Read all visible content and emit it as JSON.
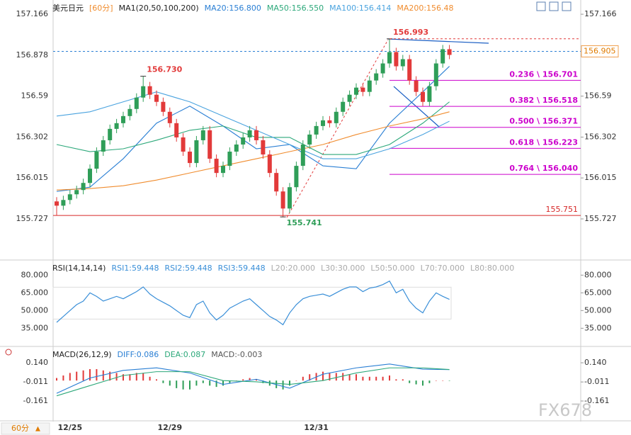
{
  "chart_data": [
    {
      "type": "candlestick",
      "title": "美元日元",
      "period": "[60分]",
      "ma_label": "MA1(20,50,100,200)",
      "up_color": "#2f9e58",
      "down_color": "#e23a3a",
      "categories": [
        null,
        null,
        "12/25",
        null,
        null,
        null,
        null,
        null,
        null,
        null,
        null,
        null,
        null,
        null,
        null,
        null,
        null,
        "12/29",
        null,
        null,
        null,
        null,
        null,
        null,
        null,
        null,
        null,
        null,
        null,
        null,
        null,
        null,
        null,
        null,
        null,
        null,
        null,
        null,
        null,
        "12/31",
        null,
        null,
        null,
        null,
        null,
        null,
        null,
        null,
        null,
        null,
        null,
        null,
        null,
        null,
        null,
        null,
        null,
        null,
        null,
        null
      ],
      "open": [
        155.85,
        155.82,
        155.86,
        155.9,
        155.93,
        155.98,
        156.08,
        156.2,
        156.28,
        156.36,
        156.4,
        156.45,
        156.5,
        156.58,
        156.66,
        156.6,
        156.55,
        156.48,
        156.4,
        156.3,
        156.2,
        156.12,
        156.28,
        156.35,
        156.15,
        156.05,
        156.1,
        156.2,
        156.25,
        156.3,
        156.35,
        156.28,
        156.18,
        156.05,
        155.92,
        155.8,
        155.95,
        156.1,
        156.25,
        156.32,
        156.38,
        156.42,
        156.4,
        156.48,
        156.55,
        156.6,
        156.65,
        156.62,
        156.7,
        156.75,
        156.82,
        156.9,
        156.8,
        156.85,
        156.7,
        156.62,
        156.55,
        156.66,
        156.82,
        156.92
      ],
      "high": [
        155.88,
        155.89,
        155.93,
        155.96,
        156.01,
        156.11,
        156.23,
        156.31,
        156.39,
        156.43,
        156.48,
        156.53,
        156.61,
        156.73,
        156.69,
        156.63,
        156.58,
        156.51,
        156.43,
        156.33,
        156.23,
        156.31,
        156.38,
        156.38,
        156.18,
        156.13,
        156.23,
        156.28,
        156.33,
        156.38,
        156.38,
        156.31,
        156.21,
        156.08,
        155.95,
        155.98,
        156.13,
        156.28,
        156.35,
        156.41,
        156.45,
        156.45,
        156.51,
        156.58,
        156.63,
        156.68,
        156.68,
        156.73,
        156.78,
        156.85,
        156.993,
        156.93,
        156.88,
        156.88,
        156.73,
        156.65,
        156.69,
        156.85,
        156.95,
        156.95
      ],
      "low": [
        155.75,
        155.79,
        155.83,
        155.87,
        155.9,
        155.95,
        156.05,
        156.17,
        156.25,
        156.33,
        156.37,
        156.42,
        156.47,
        156.55,
        156.57,
        156.52,
        156.45,
        156.37,
        156.27,
        156.17,
        156.09,
        156.09,
        156.25,
        156.12,
        156.02,
        156.02,
        156.07,
        156.17,
        156.22,
        156.27,
        156.25,
        156.15,
        156.02,
        155.89,
        155.741,
        155.77,
        155.92,
        156.07,
        156.22,
        156.29,
        156.35,
        156.37,
        156.37,
        156.45,
        156.52,
        156.57,
        156.59,
        156.59,
        156.67,
        156.72,
        156.79,
        156.77,
        156.77,
        156.67,
        156.59,
        156.52,
        156.52,
        156.63,
        156.79,
        156.85
      ],
      "close": [
        155.82,
        155.86,
        155.9,
        155.93,
        155.98,
        156.08,
        156.2,
        156.28,
        156.36,
        156.4,
        156.45,
        156.5,
        156.58,
        156.66,
        156.6,
        156.55,
        156.48,
        156.4,
        156.3,
        156.2,
        156.12,
        156.28,
        156.35,
        156.15,
        156.05,
        156.1,
        156.2,
        156.25,
        156.3,
        156.35,
        156.28,
        156.18,
        156.05,
        155.92,
        155.8,
        155.95,
        156.1,
        156.25,
        156.32,
        156.38,
        156.42,
        156.4,
        156.48,
        156.55,
        156.6,
        156.65,
        156.62,
        156.7,
        156.75,
        156.82,
        156.9,
        156.8,
        156.85,
        156.7,
        156.62,
        156.55,
        156.66,
        156.82,
        156.92,
        156.88
      ],
      "series": [
        {
          "name": "MA20:156.800",
          "color": "#2a7fd4",
          "x": [
            0,
            5,
            10,
            15,
            20,
            25,
            30,
            35,
            40,
            45,
            50,
            55,
            59
          ],
          "values": [
            155.92,
            155.95,
            156.15,
            156.4,
            156.52,
            156.38,
            156.22,
            156.25,
            156.1,
            156.08,
            156.4,
            156.62,
            156.8
          ]
        },
        {
          "name": "MA50:156.550",
          "color": "#2ca87a",
          "x": [
            0,
            5,
            10,
            15,
            20,
            25,
            30,
            35,
            40,
            45,
            50,
            55,
            59
          ],
          "values": [
            156.25,
            156.2,
            156.22,
            156.28,
            156.35,
            156.38,
            156.3,
            156.3,
            156.18,
            156.18,
            156.25,
            156.4,
            156.55
          ]
        },
        {
          "name": "MA100:156.414",
          "color": "#4aa3df",
          "x": [
            0,
            5,
            10,
            15,
            20,
            25,
            30,
            35,
            40,
            45,
            50,
            55,
            59
          ],
          "values": [
            156.45,
            156.48,
            156.55,
            156.62,
            156.55,
            156.45,
            156.35,
            156.25,
            156.15,
            156.15,
            156.22,
            156.32,
            156.414
          ]
        },
        {
          "name": "MA200:156.48",
          "color": "#f08c2e",
          "x": [
            0,
            5,
            10,
            15,
            20,
            25,
            30,
            35,
            40,
            45,
            50,
            55,
            59
          ],
          "values": [
            155.93,
            155.94,
            155.96,
            156.0,
            156.05,
            156.1,
            156.15,
            156.2,
            156.25,
            156.32,
            156.38,
            156.43,
            156.48
          ]
        }
      ],
      "fib_levels": [
        {
          "label": "0.236 \\ 156.701",
          "value": 156.701
        },
        {
          "label": "0.382 \\ 156.518",
          "value": 156.518
        },
        {
          "label": "0.500 \\ 156.371",
          "value": 156.371
        },
        {
          "label": "0.618 \\ 156.223",
          "value": 156.223
        },
        {
          "label": "0.764 \\ 156.040",
          "value": 156.04
        }
      ],
      "annotations": [
        {
          "label": "156.730",
          "value": 156.73,
          "index": 13,
          "side": "high",
          "color": "#e23a3a"
        },
        {
          "label": "155.741",
          "value": 155.741,
          "index": 34,
          "side": "low",
          "color": "#2f9e58"
        },
        {
          "label": "156.993",
          "value": 156.993,
          "index": 50,
          "side": "high",
          "color": "#e23a3a"
        }
      ],
      "support": {
        "label": "155.751",
        "value": 155.751,
        "color": "#d62828"
      },
      "last_price": 156.905,
      "ylim": [
        155.448,
        157.266
      ],
      "yticks": [
        157.166,
        156.878,
        156.59,
        156.302,
        156.015,
        155.727
      ]
    },
    {
      "type": "line",
      "title": "RSI(14,14,14)",
      "color": "#3a8fd8",
      "legend": [
        "RSI1:59.448",
        "RSI2:59.448",
        "RSI3:59.448"
      ],
      "levels": [
        "L20:20.000",
        "L30:30.000",
        "L50:50.000",
        "L70:70.000",
        "L80:80.000"
      ],
      "values": [
        40,
        45,
        50,
        55,
        58,
        65,
        62,
        58,
        60,
        62,
        60,
        63,
        66,
        70,
        64,
        60,
        57,
        54,
        50,
        46,
        44,
        55,
        58,
        48,
        42,
        46,
        52,
        55,
        58,
        60,
        55,
        50,
        45,
        42,
        38,
        48,
        55,
        60,
        62,
        63,
        64,
        62,
        65,
        68,
        70,
        70,
        66,
        69,
        70,
        72,
        75,
        65,
        68,
        58,
        52,
        48,
        58,
        65,
        62,
        59.448
      ],
      "ylim": [
        22,
        91
      ],
      "yticks": [
        {
          "value": 80,
          "label": "80.000"
        },
        {
          "value": 65,
          "label": "65.000"
        },
        {
          "value": 50,
          "label": "50.000"
        },
        {
          "value": 35,
          "label": "35.000"
        }
      ]
    },
    {
      "type": "macd",
      "title": "MACD(26,12,9)",
      "histogram_name": "MACD:-0.003",
      "up_color": "#e23a3a",
      "down_color": "#2f9e58",
      "histogram": [
        0.02,
        0.04,
        0.06,
        0.07,
        0.08,
        0.09,
        0.09,
        0.08,
        0.07,
        0.06,
        0.05,
        0.05,
        0.06,
        0.06,
        0.03,
        0.01,
        -0.02,
        -0.04,
        -0.06,
        -0.07,
        -0.07,
        -0.04,
        -0.02,
        -0.04,
        -0.05,
        -0.04,
        -0.02,
        0,
        0.01,
        0.02,
        0.01,
        -0.02,
        -0.04,
        -0.06,
        -0.07,
        -0.04,
        0,
        0.03,
        0.05,
        0.06,
        0.07,
        0.06,
        0.06,
        0.06,
        0.05,
        0.05,
        0.03,
        0.03,
        0.03,
        0.03,
        0.04,
        0.01,
        0.01,
        -0.02,
        -0.03,
        -0.04,
        -0.02,
        0,
        0,
        -0.003
      ],
      "series": [
        {
          "name": "DIFF:0.086",
          "color": "#2a7fd4",
          "x": [
            0,
            5,
            10,
            15,
            20,
            25,
            30,
            35,
            40,
            45,
            50,
            55,
            59
          ],
          "values": [
            -0.1,
            0.02,
            0.08,
            0.1,
            0.06,
            -0.03,
            0.01,
            -0.06,
            0.05,
            0.1,
            0.13,
            0.09,
            0.086
          ]
        },
        {
          "name": "DEA:0.087",
          "color": "#2ca87a",
          "x": [
            0,
            5,
            10,
            15,
            20,
            25,
            30,
            35,
            40,
            45,
            50,
            55,
            59
          ],
          "values": [
            -0.12,
            -0.04,
            0.04,
            0.07,
            0.07,
            0,
            -0.01,
            -0.03,
            0,
            0.06,
            0.1,
            0.1,
            0.087
          ]
        }
      ],
      "ylim": [
        -0.306,
        0.252
      ],
      "yticks": [
        {
          "value": 0.14,
          "label": "0.140"
        },
        {
          "value": -0.011,
          "label": "-0.011"
        },
        {
          "value": -0.161,
          "label": "-0.161"
        }
      ]
    }
  ],
  "footer": {
    "period": "60分"
  },
  "watermark": "FX678"
}
